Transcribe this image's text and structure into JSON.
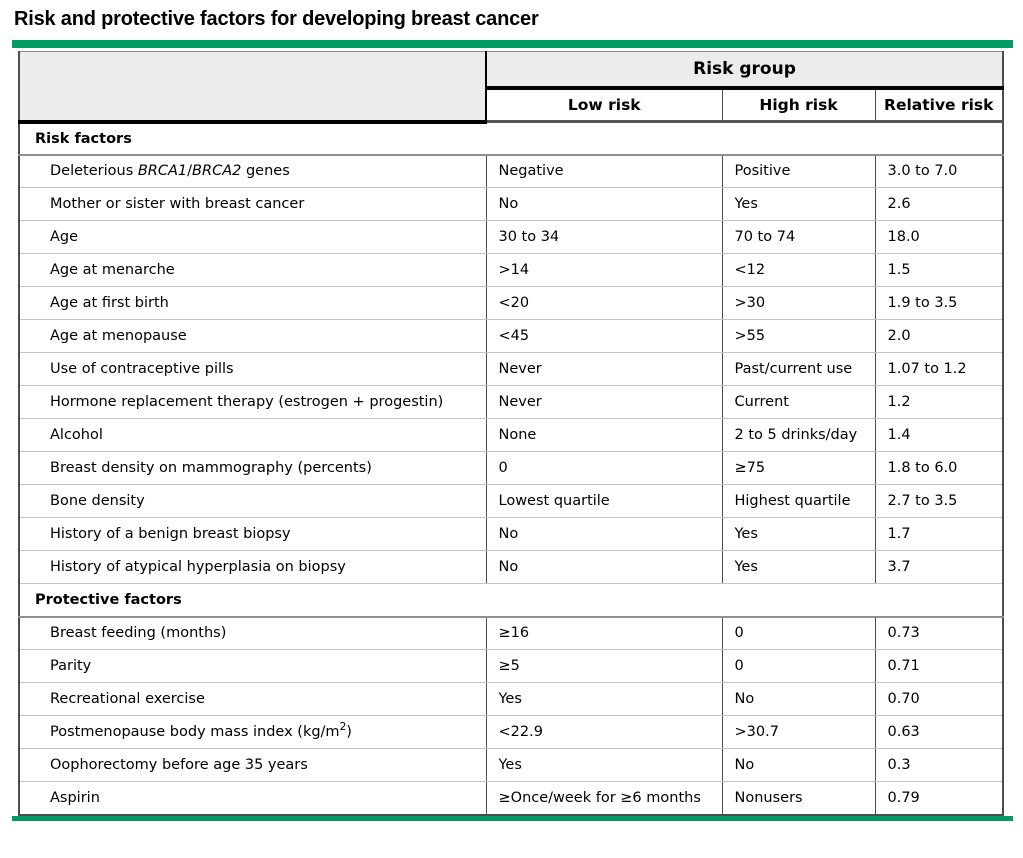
{
  "title": "Risk and protective factors for developing breast cancer",
  "colors": {
    "accent_green": "#009b63",
    "header_gray": "#ececec",
    "row_divider_gray": "#c3c3c3",
    "heavy_border_black": "#000000"
  },
  "table": {
    "group_header": "Risk group",
    "columns": [
      "Low risk",
      "High risk",
      "Relative risk"
    ],
    "sections": [
      {
        "label": "Risk factors",
        "rows": [
          {
            "factor": "Deleterious *BRCA1*/*BRCA2* genes",
            "low": "Negative",
            "high": "Positive",
            "relative_risk": "3.0 to 7.0"
          },
          {
            "factor": "Mother or sister with breast cancer",
            "low": "No",
            "high": "Yes",
            "relative_risk": "2.6"
          },
          {
            "factor": "Age",
            "low": "30 to 34",
            "high": "70 to 74",
            "relative_risk": "18.0"
          },
          {
            "factor": "Age at menarche",
            "low": ">14",
            "high": "<12",
            "relative_risk": "1.5"
          },
          {
            "factor": "Age at first birth",
            "low": "<20",
            "high": ">30",
            "relative_risk": "1.9 to 3.5"
          },
          {
            "factor": "Age at menopause",
            "low": "<45",
            "high": ">55",
            "relative_risk": "2.0"
          },
          {
            "factor": "Use of contraceptive pills",
            "low": "Never",
            "high": "Past/current use",
            "relative_risk": "1.07 to 1.2"
          },
          {
            "factor": "Hormone replacement therapy (estrogen + progestin)",
            "low": "Never",
            "high": "Current",
            "relative_risk": "1.2"
          },
          {
            "factor": "Alcohol",
            "low": "None",
            "high": "2 to 5 drinks/day",
            "relative_risk": "1.4"
          },
          {
            "factor": "Breast density on mammography (percents)",
            "low": "0",
            "high": "≥75",
            "relative_risk": "1.8 to 6.0"
          },
          {
            "factor": "Bone density",
            "low": "Lowest quartile",
            "high": "Highest quartile",
            "relative_risk": "2.7 to 3.5"
          },
          {
            "factor": "History of a benign breast biopsy",
            "low": "No",
            "high": "Yes",
            "relative_risk": "1.7"
          },
          {
            "factor": "History of atypical hyperplasia on biopsy",
            "low": "No",
            "high": "Yes",
            "relative_risk": "3.7"
          }
        ]
      },
      {
        "label": "Protective factors",
        "rows": [
          {
            "factor": "Breast feeding (months)",
            "low": "≥16",
            "high": "0",
            "relative_risk": "0.73"
          },
          {
            "factor": "Parity",
            "low": "≥5",
            "high": "0",
            "relative_risk": "0.71"
          },
          {
            "factor": "Recreational exercise",
            "low": "Yes",
            "high": "No",
            "relative_risk": "0.70"
          },
          {
            "factor": "Postmenopause body mass index (kg/m^2^)",
            "low": "<22.9",
            "high": ">30.7",
            "relative_risk": "0.63"
          },
          {
            "factor": "Oophorectomy before age 35 years",
            "low": "Yes",
            "high": "No",
            "relative_risk": "0.3"
          },
          {
            "factor": "Aspirin",
            "low": "≥Once/week for ≥6 months",
            "high": "Nonusers",
            "relative_risk": "0.79"
          }
        ]
      }
    ]
  }
}
